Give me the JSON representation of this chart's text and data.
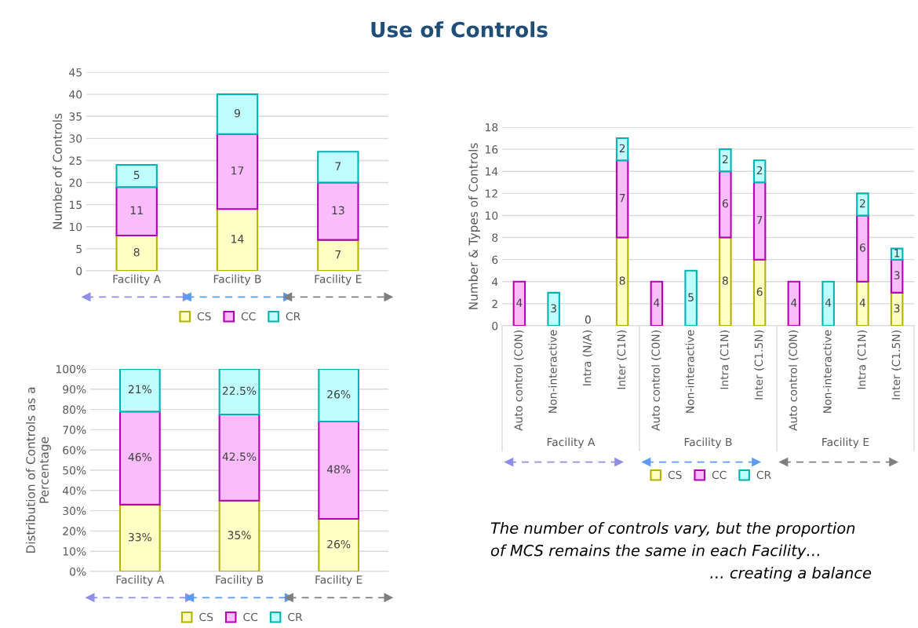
{
  "chart_data": [
    {
      "type": "bar",
      "title": "Use of Controls",
      "ylabel": "Number of Controls",
      "categories": [
        "Facility A",
        "Facility B",
        "Facility E"
      ],
      "stacked": true,
      "data_labels": true,
      "grid": "y",
      "legend": "bottom",
      "ylim": [
        0,
        45
      ],
      "yticks": [
        0,
        5,
        10,
        15,
        20,
        25,
        30,
        35,
        40,
        45
      ],
      "series": [
        {
          "name": "CS",
          "color": "#ffffc5",
          "values": [
            8,
            14,
            7
          ]
        },
        {
          "name": "CC",
          "color": "#fbbcfb",
          "values": [
            11,
            17,
            13
          ]
        },
        {
          "name": "CR",
          "color": "#c0ffff",
          "values": [
            5,
            9,
            7
          ]
        }
      ]
    },
    {
      "type": "bar",
      "ylabel": "Number & Types of Controls",
      "categories": [
        "Auto control (C0N)",
        "Non-interactive",
        "Intra (N/A)",
        "Inter (C1N)",
        "Auto control (C0N)",
        "Non-interactive",
        "Intra (C1N)",
        "Inter (C1.5N)",
        "Auto control (C0N)",
        "Non-interactive",
        "Intra (C1N)",
        "Inter (C1.5N)"
      ],
      "stacked": true,
      "grid": "y",
      "legend": "bottom",
      "ylim": [
        0,
        18
      ],
      "yticks": [
        0,
        2,
        4,
        6,
        8,
        10,
        12,
        14,
        16,
        18
      ],
      "annotations": [
        "Facility A",
        "Facility B",
        "Facility E"
      ],
      "series": [
        {
          "name": "CS",
          "color": "#ffffc5",
          "values": [
            0,
            0,
            0,
            8,
            0,
            0,
            8,
            6,
            0,
            0,
            4,
            3
          ],
          "value_labels": [
            null,
            null,
            "0",
            "8",
            null,
            null,
            "8",
            "6",
            null,
            null,
            "4",
            "3"
          ]
        },
        {
          "name": "CC",
          "color": "#fbbcfb",
          "values": [
            4,
            0,
            0,
            7,
            4,
            0,
            6,
            7,
            4,
            0,
            6,
            3
          ],
          "value_labels": [
            "4",
            null,
            null,
            "7",
            "4",
            null,
            "6",
            "7",
            "4",
            null,
            "6",
            "3"
          ]
        },
        {
          "name": "CR",
          "color": "#c0ffff",
          "values": [
            0,
            3,
            0,
            2,
            0,
            5,
            2,
            2,
            0,
            4,
            2,
            1
          ],
          "value_labels": [
            null,
            "3",
            null,
            "2",
            null,
            "5",
            "2",
            "2",
            null,
            "4",
            "2",
            "1"
          ]
        }
      ]
    },
    {
      "type": "bar",
      "ylabel": "Distribution of Controls as a\nPercentage",
      "categories": [
        "Facility A",
        "Facility B",
        "Facility E"
      ],
      "stacked": true,
      "grid": "y",
      "legend": "bottom",
      "ylim": [
        0,
        100
      ],
      "yticks": [
        {
          "value": 0,
          "label": "0%"
        },
        {
          "value": 10,
          "label": "10%"
        },
        {
          "value": 20,
          "label": "20%"
        },
        {
          "value": 30,
          "label": "30%"
        },
        {
          "value": 40,
          "label": "40%"
        },
        {
          "value": 50,
          "label": "50%"
        },
        {
          "value": 60,
          "label": "60%"
        },
        {
          "value": 70,
          "label": "70%"
        },
        {
          "value": 80,
          "label": "80%"
        },
        {
          "value": 90,
          "label": "90%"
        },
        {
          "value": 100,
          "label": "100%"
        }
      ],
      "series": [
        {
          "name": "CS",
          "color": "#ffffc5",
          "values": [
            33,
            35,
            26
          ],
          "value_labels": [
            "33%",
            "35%",
            "26%"
          ]
        },
        {
          "name": "CC",
          "color": "#fbbcfb",
          "values": [
            46,
            42.5,
            48
          ],
          "value_labels": [
            "46%",
            "42.5%",
            "48%"
          ]
        },
        {
          "name": "CR",
          "color": "#c0ffff",
          "values": [
            21,
            22.5,
            26
          ],
          "value_labels": [
            "21%",
            "22.5%",
            "26%"
          ]
        }
      ]
    },
    {
      "type": "other",
      "annotations": [
        "The number of controls vary, but the proportion",
        "of MCS remains the same in each Facility…",
        "… creating a balance"
      ]
    }
  ]
}
